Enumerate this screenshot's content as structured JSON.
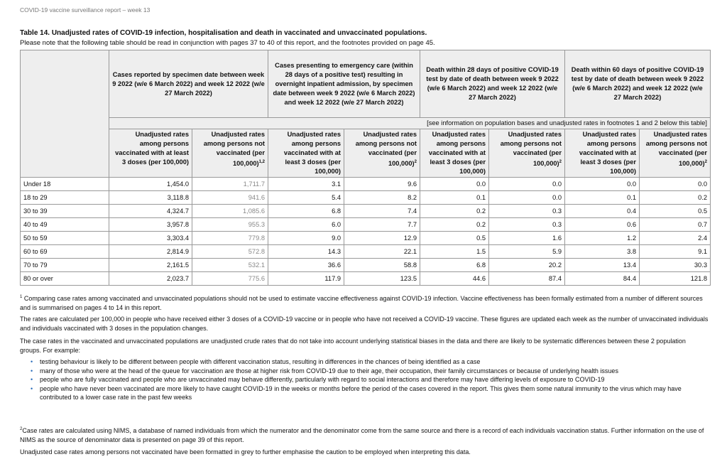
{
  "running_header": "COVID-19 vaccine surveillance report – week 13",
  "title": "Table 14. Unadjusted rates of COVID-19 infection, hospitalisation and death in vaccinated and unvaccinated populations.",
  "subtitle": "Please note that the following table should be read in conjunction with pages 37 to 40 of this report, and the footnotes provided on page 45.",
  "table": {
    "groups": [
      "Cases reported by specimen date between week 9 2022 (w/e 6 March 2022) and week 12 2022 (w/e 27 March 2022)",
      "Cases presenting to emergency care (within 28 days of a positive test) resulting in overnight inpatient admission, by specimen date between week 9 2022 (w/e 6 March 2022) and week 12 2022 (w/e 27 March 2022)",
      "Death within 28 days of positive COVID-19 test by date of death between week 9 2022 (w/e 6 March 2022) and week 12 2022 (w/e 27 March 2022)",
      "Death within 60 days of positive COVID-19 test by date of death between week 9 2022 (w/e 6 March 2022) and week 12 2022 (w/e 27 March 2022)"
    ],
    "span_note": "[see information on population bases and unadjusted rates in footnotes 1 and 2 below this table]",
    "col_vacc": "Unadjusted rates among persons vaccinated with at least 3 doses (per 100,000)",
    "col_unvacc": "Unadjusted rates among persons not vaccinated (per 100,000)",
    "sup_first": "1,2",
    "sup_other": "2",
    "rows": [
      {
        "age": "Under 18",
        "v": [
          "1,454.0",
          "1,711.7",
          "3.1",
          "9.6",
          "0.0",
          "0.0",
          "0.0",
          "0.0"
        ]
      },
      {
        "age": "18 to 29",
        "v": [
          "3,118.8",
          "941.6",
          "5.4",
          "8.2",
          "0.1",
          "0.0",
          "0.1",
          "0.2"
        ]
      },
      {
        "age": "30 to 39",
        "v": [
          "4,324.7",
          "1,085.6",
          "6.8",
          "7.4",
          "0.2",
          "0.3",
          "0.4",
          "0.5"
        ]
      },
      {
        "age": "40 to 49",
        "v": [
          "3,957.8",
          "955.3",
          "6.0",
          "7.7",
          "0.2",
          "0.3",
          "0.6",
          "0.7"
        ]
      },
      {
        "age": "50 to 59",
        "v": [
          "3,303.4",
          "779.8",
          "9.0",
          "12.9",
          "0.5",
          "1.6",
          "1.2",
          "2.4"
        ]
      },
      {
        "age": "60 to 69",
        "v": [
          "2,814.9",
          "572.8",
          "14.3",
          "22.1",
          "1.5",
          "5.9",
          "3.8",
          "9.1"
        ]
      },
      {
        "age": "70 to 79",
        "v": [
          "2,161.5",
          "532.1",
          "36.6",
          "58.8",
          "6.8",
          "20.2",
          "13.4",
          "30.3"
        ]
      },
      {
        "age": "80 or over",
        "v": [
          "2,023.7",
          "775.6",
          "117.9",
          "123.5",
          "44.6",
          "87.4",
          "84.4",
          "121.8"
        ]
      }
    ]
  },
  "footnotes": {
    "f1_sup": "1",
    "f1": "Comparing case rates among vaccinated and unvaccinated populations should not be used to estimate vaccine effectiveness against COVID-19 infection. Vaccine effectiveness has been formally estimated from a number of different sources and is summarised on pages 4 to 14 in this report.",
    "p2": "The rates are calculated per 100,000 in people who have received either 3 doses of a COVID-19 vaccine or in people who have not received a COVID-19 vaccine. These figures are updated each week as the number of unvaccinated individuals and individuals vaccinated with 3 doses in the population changes.",
    "p3": "The case rates in the vaccinated and unvaccinated populations are unadjusted crude rates that do not take into account underlying statistical biases in the data and there are likely to be systematic differences between these 2 population groups. For example:",
    "bullets": [
      "testing behaviour is likely to be different between people with different vaccination status, resulting in differences in the chances of being identified as a case",
      "many of those who were at the head of the queue for vaccination are those at higher risk from COVID-19 due to their age, their occupation, their family circumstances or because of underlying health issues",
      "people who are fully vaccinated and people who are unvaccinated may behave differently, particularly with regard to social interactions and therefore may have differing levels of exposure to COVID-19",
      "people who have never been vaccinated are more likely to have caught COVID-19 in the weeks or months before the period of the cases covered in the report. This gives them some natural immunity to the virus which may have contributed to a lower case rate in the past few weeks"
    ],
    "f2_sup": "2",
    "f2": "Case rates are calculated using NIMS, a database of named individuals from which the numerator and the denominator come from the same source and there is a record of each individuals vaccination status. Further information on the use of NIMS as the source of denominator data is presented on page 39 of this report.",
    "p_last": "Unadjusted case rates among persons not vaccinated have been formatted in grey to further emphasise the caution to be employed when interpreting this data."
  },
  "colors": {
    "grey_values": "#888888",
    "header_bg": "#eeeeee",
    "bullet": "#2a6ebb"
  }
}
